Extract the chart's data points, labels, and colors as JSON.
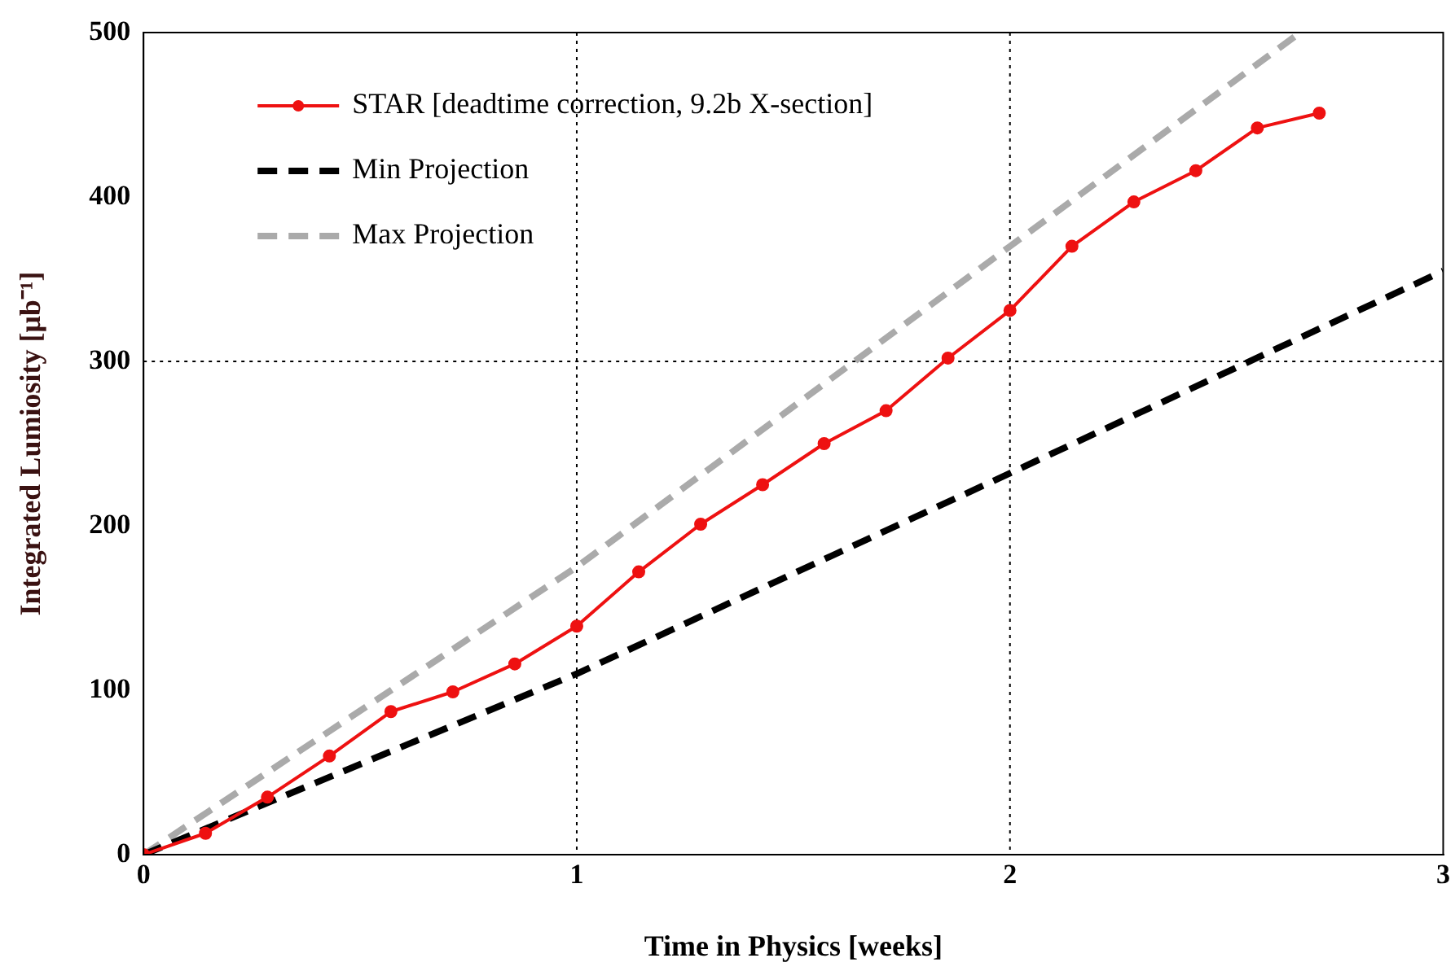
{
  "chart_data": {
    "type": "line",
    "xlabel": "Time in Physics [weeks]",
    "ylabel": "Integrated Lumiosity [μb⁻¹]",
    "xlim": [
      0,
      3
    ],
    "xticks": [
      0,
      1,
      2,
      3
    ],
    "ylim": [
      0,
      500
    ],
    "yticks": [
      0,
      100,
      200,
      300,
      400,
      500
    ],
    "grid": false,
    "legend": "top left",
    "series": [
      {
        "name": "STAR [deadtime correction, 9.2b X-section]",
        "color": "#ee1111",
        "marker": "circle",
        "line_style": "solid",
        "x": [
          0,
          0.143,
          0.286,
          0.429,
          0.571,
          0.714,
          0.857,
          1.0,
          1.143,
          1.286,
          1.429,
          1.571,
          1.714,
          1.857,
          2.0,
          2.143,
          2.286,
          2.429,
          2.571,
          2.714
        ],
        "values": [
          0,
          13,
          35,
          60,
          87,
          99,
          116,
          139,
          172,
          201,
          225,
          250,
          270,
          302,
          331,
          370,
          397,
          416,
          442,
          451
        ]
      },
      {
        "name": "Min Projection",
        "color": "#000000",
        "marker": "none",
        "line_style": "dashed",
        "x": [
          0,
          1,
          2,
          3
        ],
        "values": [
          0,
          110,
          232,
          355
        ]
      },
      {
        "name": "Max Projection",
        "color": "#aaaaaa",
        "marker": "none",
        "line_style": "dashed",
        "x": [
          0,
          1,
          2,
          2.67
        ],
        "values": [
          0,
          175,
          370,
          500
        ]
      }
    ],
    "ref_lines": [
      {
        "axis": "x",
        "value": 1,
        "color": "#000000",
        "line_style": "dotted"
      },
      {
        "axis": "x",
        "value": 2,
        "color": "#000000",
        "line_style": "dotted"
      },
      {
        "axis": "y",
        "value": 300,
        "color": "#000000",
        "line_style": "dotted"
      }
    ]
  }
}
